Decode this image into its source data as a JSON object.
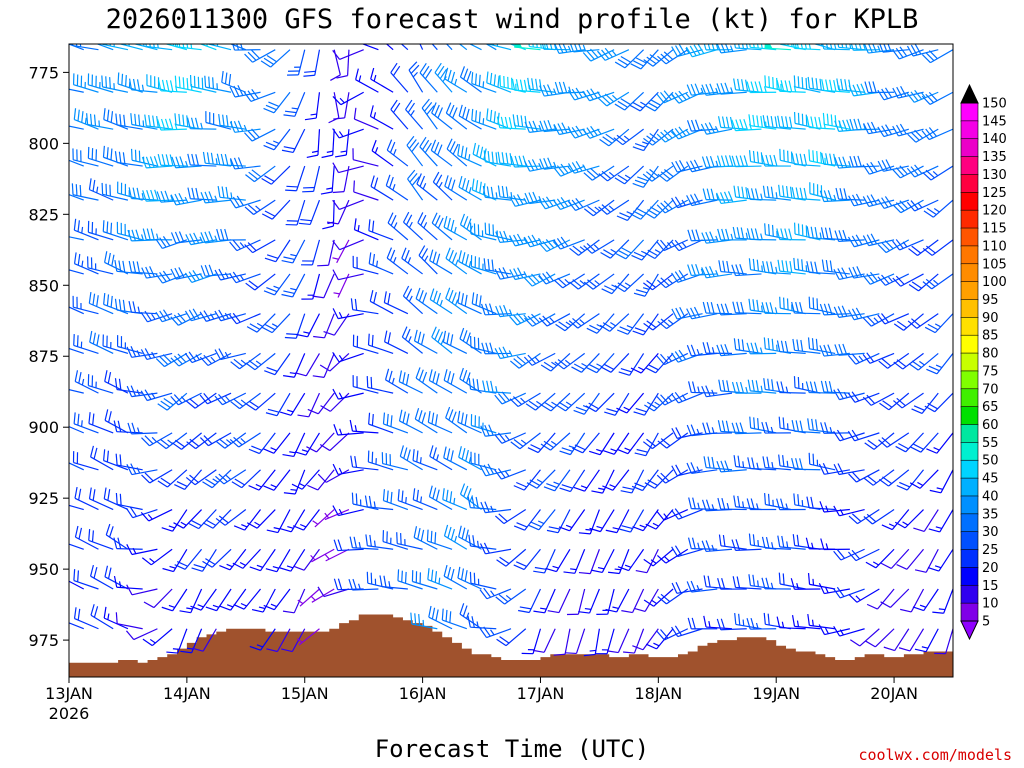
{
  "chart_data": {
    "type": "wind-barb-profile",
    "title": "2026011300 GFS forecast wind profile (kt) for KPLB",
    "xlabel": "Forecast Time (UTC)",
    "ylabel": "",
    "credit": "coolwx.com/models",
    "y_axis": {
      "unit": "hPa",
      "range": [
        765,
        988
      ],
      "ticks": [
        775,
        800,
        825,
        850,
        875,
        900,
        925,
        950,
        975
      ]
    },
    "x_axis": {
      "range_hours": [
        0,
        180
      ],
      "ticks": [
        {
          "hour": 0,
          "label": "13JAN",
          "sublabel": "2026"
        },
        {
          "hour": 24,
          "label": "14JAN"
        },
        {
          "hour": 48,
          "label": "15JAN"
        },
        {
          "hour": 72,
          "label": "16JAN"
        },
        {
          "hour": 96,
          "label": "17JAN"
        },
        {
          "hour": 120,
          "label": "18JAN"
        },
        {
          "hour": 144,
          "label": "19JAN"
        },
        {
          "hour": 168,
          "label": "20JAN"
        }
      ]
    },
    "barb_levels_hpa": [
      767,
      782,
      795,
      808,
      820,
      834,
      846,
      860,
      874,
      888,
      902,
      915,
      929,
      943,
      957,
      971,
      985
    ],
    "barb_times_hours": [
      0,
      3,
      6,
      9,
      12,
      15,
      18,
      21,
      24,
      27,
      30,
      33,
      36,
      39,
      42,
      45,
      48,
      51,
      54,
      57,
      60,
      63,
      66,
      69,
      72,
      75,
      78,
      81,
      84,
      87,
      90,
      93,
      96,
      99,
      102,
      105,
      108,
      111,
      114,
      117,
      120,
      123,
      126,
      129,
      132,
      135,
      138,
      141,
      144,
      147,
      150,
      153,
      156,
      159,
      162,
      165,
      168,
      171,
      174,
      177,
      180
    ],
    "wind_regimes": [
      {
        "hour": 0,
        "upper_dir": 285,
        "upper_kt": 30,
        "lower_dir": 290,
        "lower_kt": 20
      },
      {
        "hour": 12,
        "upper_dir": 285,
        "upper_kt": 35,
        "lower_dir": 300,
        "lower_kt": 15
      },
      {
        "hour": 24,
        "upper_dir": 280,
        "upper_kt": 45,
        "lower_dir": 200,
        "lower_kt": 10
      },
      {
        "hour": 36,
        "upper_dir": 290,
        "upper_kt": 35,
        "lower_dir": 210,
        "lower_kt": 15
      },
      {
        "hour": 48,
        "upper_dir": 200,
        "upper_kt": 25,
        "lower_dir": 210,
        "lower_kt": 10
      },
      {
        "hour": 56,
        "upper_dir": 160,
        "upper_kt": 10,
        "lower_dir": 260,
        "lower_kt": 5
      },
      {
        "hour": 62,
        "upper_dir": 290,
        "upper_kt": 10,
        "lower_dir": 270,
        "lower_kt": 25
      },
      {
        "hour": 72,
        "upper_dir": 330,
        "upper_kt": 25,
        "lower_dir": 280,
        "lower_kt": 30
      },
      {
        "hour": 84,
        "upper_dir": 300,
        "upper_kt": 35,
        "lower_dir": 300,
        "lower_kt": 30
      },
      {
        "hour": 96,
        "upper_dir": 280,
        "upper_kt": 45,
        "lower_dir": 200,
        "lower_kt": 15
      },
      {
        "hour": 108,
        "upper_dir": 260,
        "upper_kt": 35,
        "lower_dir": 190,
        "lower_kt": 10
      },
      {
        "hour": 120,
        "upper_dir": 220,
        "upper_kt": 30,
        "lower_dir": 210,
        "lower_kt": 10
      },
      {
        "hour": 132,
        "upper_dir": 260,
        "upper_kt": 35,
        "lower_dir": 270,
        "lower_kt": 20
      },
      {
        "hour": 144,
        "upper_dir": 275,
        "upper_kt": 45,
        "lower_dir": 275,
        "lower_kt": 20
      },
      {
        "hour": 156,
        "upper_dir": 280,
        "upper_kt": 45,
        "lower_dir": 275,
        "lower_kt": 15
      },
      {
        "hour": 168,
        "upper_dir": 265,
        "upper_kt": 35,
        "lower_dir": 220,
        "lower_kt": 10
      },
      {
        "hour": 180,
        "upper_dir": 245,
        "upper_kt": 30,
        "lower_dir": 200,
        "lower_kt": 10
      }
    ],
    "terrain_hpa": [
      {
        "hour": 0,
        "p": 983
      },
      {
        "hour": 8,
        "p": 983
      },
      {
        "hour": 10,
        "p": 982
      },
      {
        "hour": 14,
        "p": 983
      },
      {
        "hour": 16,
        "p": 982
      },
      {
        "hour": 18,
        "p": 981
      },
      {
        "hour": 20,
        "p": 980
      },
      {
        "hour": 22,
        "p": 978
      },
      {
        "hour": 24,
        "p": 976
      },
      {
        "hour": 26,
        "p": 974
      },
      {
        "hour": 28,
        "p": 973
      },
      {
        "hour": 30,
        "p": 972
      },
      {
        "hour": 32,
        "p": 971
      },
      {
        "hour": 38,
        "p": 971
      },
      {
        "hour": 40,
        "p": 972
      },
      {
        "hour": 51,
        "p": 972
      },
      {
        "hour": 53,
        "p": 971
      },
      {
        "hour": 55,
        "p": 969
      },
      {
        "hour": 57,
        "p": 968
      },
      {
        "hour": 59,
        "p": 966
      },
      {
        "hour": 64,
        "p": 966
      },
      {
        "hour": 66,
        "p": 967
      },
      {
        "hour": 68,
        "p": 968
      },
      {
        "hour": 70,
        "p": 969
      },
      {
        "hour": 72,
        "p": 970
      },
      {
        "hour": 74,
        "p": 972
      },
      {
        "hour": 76,
        "p": 974
      },
      {
        "hour": 78,
        "p": 976
      },
      {
        "hour": 80,
        "p": 978
      },
      {
        "hour": 82,
        "p": 980
      },
      {
        "hour": 86,
        "p": 981
      },
      {
        "hour": 88,
        "p": 982
      },
      {
        "hour": 94,
        "p": 982
      },
      {
        "hour": 96,
        "p": 981
      },
      {
        "hour": 98,
        "p": 980
      },
      {
        "hour": 106,
        "p": 980
      },
      {
        "hour": 110,
        "p": 981
      },
      {
        "hour": 114,
        "p": 980
      },
      {
        "hour": 118,
        "p": 981
      },
      {
        "hour": 124,
        "p": 980
      },
      {
        "hour": 126,
        "p": 979
      },
      {
        "hour": 128,
        "p": 977
      },
      {
        "hour": 130,
        "p": 976
      },
      {
        "hour": 132,
        "p": 975
      },
      {
        "hour": 136,
        "p": 974
      },
      {
        "hour": 140,
        "p": 974
      },
      {
        "hour": 142,
        "p": 975
      },
      {
        "hour": 144,
        "p": 977
      },
      {
        "hour": 146,
        "p": 978
      },
      {
        "hour": 148,
        "p": 979
      },
      {
        "hour": 152,
        "p": 980
      },
      {
        "hour": 154,
        "p": 981
      },
      {
        "hour": 156,
        "p": 982
      },
      {
        "hour": 158,
        "p": 982
      },
      {
        "hour": 160,
        "p": 981
      },
      {
        "hour": 162,
        "p": 980
      },
      {
        "hour": 166,
        "p": 981
      },
      {
        "hour": 170,
        "p": 980
      },
      {
        "hour": 174,
        "p": 979
      },
      {
        "hour": 180,
        "p": 979
      }
    ],
    "terrain_color": "#a0522d",
    "colorbar": {
      "title": "",
      "labels": [
        "150",
        "145",
        "140",
        "135",
        "130",
        "125",
        "120",
        "115",
        "110",
        "105",
        "100",
        "95",
        "90",
        "85",
        "80",
        "75",
        "70",
        "65",
        "60",
        "55",
        "50",
        "45",
        "40",
        "35",
        "30",
        "25",
        "20",
        "15",
        "10",
        "5"
      ],
      "bins": [
        {
          "min": 145,
          "color": "#ff00ff"
        },
        {
          "min": 140,
          "color": "#f500e6"
        },
        {
          "min": 135,
          "color": "#ec00c8"
        },
        {
          "min": 130,
          "color": "#ff0080"
        },
        {
          "min": 125,
          "color": "#ff0040"
        },
        {
          "min": 120,
          "color": "#ff0000"
        },
        {
          "min": 115,
          "color": "#ff2a00"
        },
        {
          "min": 110,
          "color": "#ff5500"
        },
        {
          "min": 105,
          "color": "#ff7700"
        },
        {
          "min": 100,
          "color": "#ff8c00"
        },
        {
          "min": 95,
          "color": "#ffa000"
        },
        {
          "min": 90,
          "color": "#ffc000"
        },
        {
          "min": 85,
          "color": "#ffe000"
        },
        {
          "min": 80,
          "color": "#ffff00"
        },
        {
          "min": 75,
          "color": "#c8ff00"
        },
        {
          "min": 70,
          "color": "#80ff00"
        },
        {
          "min": 65,
          "color": "#40f000"
        },
        {
          "min": 60,
          "color": "#00e000"
        },
        {
          "min": 55,
          "color": "#00e8a0"
        },
        {
          "min": 50,
          "color": "#00f0d0"
        },
        {
          "min": 45,
          "color": "#00d4ff"
        },
        {
          "min": 40,
          "color": "#00b0ff"
        },
        {
          "min": 35,
          "color": "#0090ff"
        },
        {
          "min": 30,
          "color": "#0070ff"
        },
        {
          "min": 25,
          "color": "#0050ff"
        },
        {
          "min": 20,
          "color": "#0030ff"
        },
        {
          "min": 15,
          "color": "#0000ff"
        },
        {
          "min": 10,
          "color": "#3000f0"
        },
        {
          "min": 5,
          "color": "#8000e8"
        }
      ],
      "top_arrow_color": "#000000",
      "bottom_arrow_color": "#9000ff"
    }
  }
}
